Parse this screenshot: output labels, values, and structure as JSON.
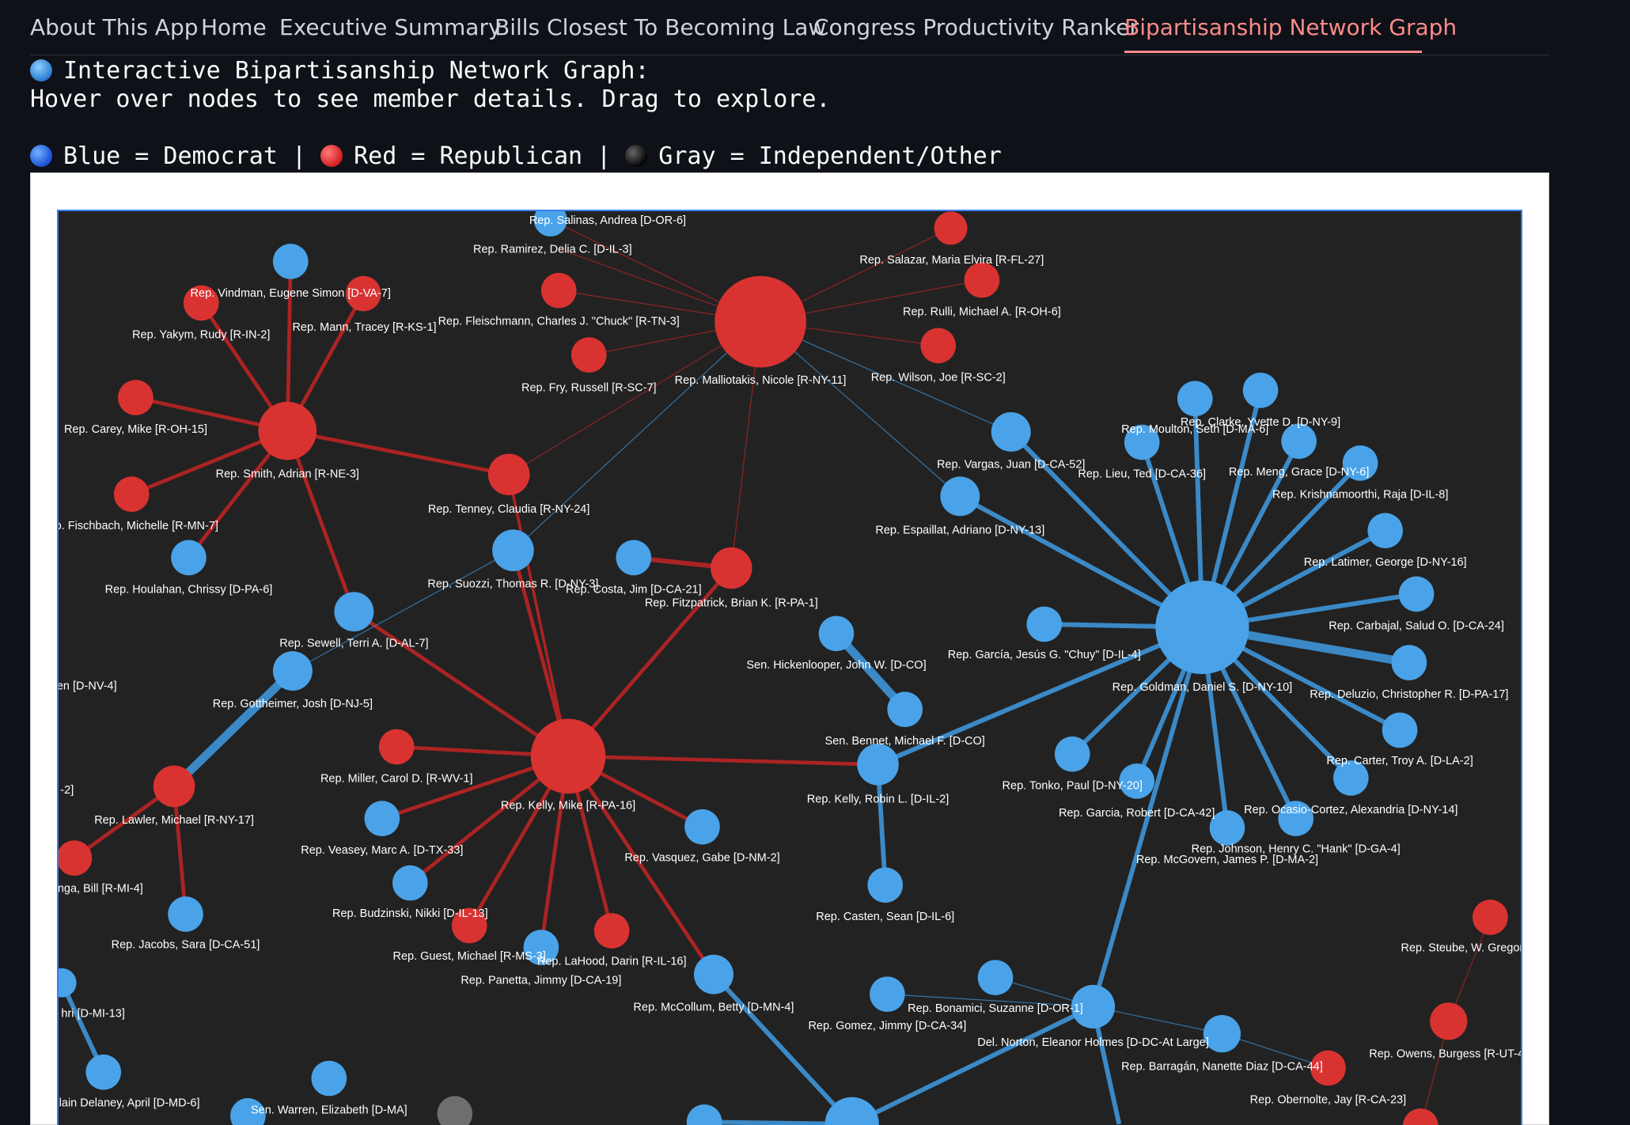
{
  "tabs": [
    {
      "label": "About This App",
      "active": false
    },
    {
      "label": "Home",
      "active": false
    },
    {
      "label": "Executive Summary",
      "active": false
    },
    {
      "label": "Bills Closest To Becoming Law",
      "active": false
    },
    {
      "label": "Congress Productivity Ranker",
      "active": false
    },
    {
      "label": "Bipartisanship Network Graph",
      "active": true
    }
  ],
  "intro": {
    "title": "Interactive Bipartisanship Network Graph:",
    "instructions": "Hover over nodes to see member details. Drag to explore.",
    "legend": {
      "democrat": "Blue = Democrat",
      "republican": "Red = Republican",
      "independent": "Gray = Independent/Other",
      "separator": "|"
    }
  },
  "colors": {
    "democrat": "#4aa3e8",
    "republican": "#d93331",
    "independent": "#6e6e6e",
    "accent": "#ff8a8a",
    "frame_border": "#3b7dea"
  },
  "nodes": [
    {
      "id": "salinas",
      "label": "Rep. Salinas, Andrea [D-OR-6]",
      "party": "D"
    },
    {
      "id": "ramirez",
      "label": "Rep. Ramirez, Delia C. [D-IL-3]",
      "party": "D"
    },
    {
      "id": "salazar",
      "label": "Rep. Salazar, Maria Elvira [R-FL-27]",
      "party": "R"
    },
    {
      "id": "vindman",
      "label": "Rep. Vindman, Eugene Simon [D-VA-7]",
      "party": "D"
    },
    {
      "id": "yakym",
      "label": "Rep. Yakym, Rudy [R-IN-2]",
      "party": "R"
    },
    {
      "id": "mann",
      "label": "Rep. Mann, Tracey [R-KS-1]",
      "party": "R"
    },
    {
      "id": "fleischmann",
      "label": "Rep. Fleischmann, Charles J. \"Chuck\" [R-TN-3]",
      "party": "R"
    },
    {
      "id": "rulli",
      "label": "Rep. Rulli, Michael A. [R-OH-6]",
      "party": "R"
    },
    {
      "id": "malliotakis",
      "label": "Rep. Malliotakis, Nicole [R-NY-11]",
      "party": "R"
    },
    {
      "id": "fry",
      "label": "Rep. Fry, Russell [R-SC-7]",
      "party": "R"
    },
    {
      "id": "wilson",
      "label": "Rep. Wilson, Joe [R-SC-2]",
      "party": "R"
    },
    {
      "id": "carey",
      "label": "Rep. Carey, Mike [R-OH-15]",
      "party": "R"
    },
    {
      "id": "smith",
      "label": "Rep. Smith, Adrian [R-NE-3]",
      "party": "R"
    },
    {
      "id": "fischbach",
      "label": "p. Fischbach, Michelle [R-MN-7]",
      "party": "R"
    },
    {
      "id": "houlahan",
      "label": "Rep. Houlahan, Chrissy [D-PA-6]",
      "party": "D"
    },
    {
      "id": "tenney",
      "label": "Rep. Tenney, Claudia [R-NY-24]",
      "party": "R"
    },
    {
      "id": "suozzi",
      "label": "Rep. Suozzi, Thomas R. [D-NY-3]",
      "party": "D"
    },
    {
      "id": "costa",
      "label": "Rep. Costa, Jim [D-CA-21]",
      "party": "D"
    },
    {
      "id": "fitzpatrick",
      "label": "Rep. Fitzpatrick, Brian K. [R-PA-1]",
      "party": "R"
    },
    {
      "id": "vargas",
      "label": "Rep. Vargas, Juan [D-CA-52]",
      "party": "D"
    },
    {
      "id": "espaillat",
      "label": "Rep. Espaillat, Adriano [D-NY-13]",
      "party": "D"
    },
    {
      "id": "moulton",
      "label": "Rep. Moulton, Seth [D-MA-6]",
      "party": "D"
    },
    {
      "id": "clarke",
      "label": "Rep. Clarke, Yvette D. [D-NY-9]",
      "party": "D"
    },
    {
      "id": "lieu",
      "label": "Rep. Lieu, Ted [D-CA-36]",
      "party": "D"
    },
    {
      "id": "meng",
      "label": "Rep. Meng, Grace [D-NY-6]",
      "party": "D"
    },
    {
      "id": "krishnamoorthi",
      "label": "Rep. Krishnamoorthi, Raja [D-IL-8]",
      "party": "D"
    },
    {
      "id": "latimer",
      "label": "Rep. Latimer, George [D-NY-16]",
      "party": "D"
    },
    {
      "id": "carbajal",
      "label": "Rep. Carbajal, Salud O. [D-CA-24]",
      "party": "D"
    },
    {
      "id": "garcia_j",
      "label": "Rep. García, Jesús G. \"Chuy\" [D-IL-4]",
      "party": "D"
    },
    {
      "id": "goldman",
      "label": "Rep. Goldman, Daniel S. [D-NY-10]",
      "party": "D"
    },
    {
      "id": "deluzio",
      "label": "Rep. Deluzio, Christopher R. [D-PA-17]",
      "party": "D"
    },
    {
      "id": "sewell",
      "label": "Rep. Sewell, Terri A. [D-AL-7]",
      "party": "D"
    },
    {
      "id": "hickenlooper",
      "label": "Sen. Hickenlooper, John W. [D-CO]",
      "party": "D"
    },
    {
      "id": "nv4",
      "label": "en [D-NV-4]",
      "party": "D"
    },
    {
      "id": "gottheimer",
      "label": "Rep. Gottheimer, Josh [D-NJ-5]",
      "party": "D"
    },
    {
      "id": "bennet",
      "label": "Sen. Bennet, Michael F. [D-CO]",
      "party": "D"
    },
    {
      "id": "carter",
      "label": "Rep. Carter, Troy A. [D-LA-2]",
      "party": "D"
    },
    {
      "id": "miller",
      "label": "Rep. Miller, Carol D. [R-WV-1]",
      "party": "R"
    },
    {
      "id": "tonko",
      "label": "Rep. Tonko, Paul [D-NY-20]",
      "party": "D"
    },
    {
      "id": "nn2",
      "label": "-2]",
      "party": "D"
    },
    {
      "id": "kelly_mike",
      "label": "Rep. Kelly, Mike [R-PA-16]",
      "party": "R"
    },
    {
      "id": "kelly_robin",
      "label": "Rep. Kelly, Robin L. [D-IL-2]",
      "party": "D"
    },
    {
      "id": "garcia_r",
      "label": "Rep. Garcia, Robert [D-CA-42]",
      "party": "D"
    },
    {
      "id": "ocasio",
      "label": "Rep. Ocasio-Cortez, Alexandria [D-NY-14]",
      "party": "D"
    },
    {
      "id": "lawler",
      "label": "Rep. Lawler, Michael [R-NY-17]",
      "party": "R"
    },
    {
      "id": "veasey",
      "label": "Rep. Veasey, Marc A. [D-TX-33]",
      "party": "D"
    },
    {
      "id": "vasquez",
      "label": "Rep. Vasquez, Gabe [D-NM-2]",
      "party": "D"
    },
    {
      "id": "johnson",
      "label": "Rep. Johnson, Henry C. \"Hank\" [D-GA-4]",
      "party": "D"
    },
    {
      "id": "mcgovern",
      "label": "Rep. McGovern, James P. [D-MA-2]",
      "party": "D"
    },
    {
      "id": "huizenga",
      "label": "nga, Bill [R-MI-4]",
      "party": "R"
    },
    {
      "id": "budzinski",
      "label": "Rep. Budzinski, Nikki [D-IL-13]",
      "party": "D"
    },
    {
      "id": "casten",
      "label": "Rep. Casten, Sean [D-IL-6]",
      "party": "D"
    },
    {
      "id": "steube",
      "label": "Rep. Steube, W. Gregor",
      "party": "R"
    },
    {
      "id": "jacobs",
      "label": "Rep. Jacobs, Sara [D-CA-51]",
      "party": "D"
    },
    {
      "id": "guest",
      "label": "Rep. Guest, Michael [R-MS-3]",
      "party": "R"
    },
    {
      "id": "lahood",
      "label": "Rep. LaHood, Darin [R-IL-16]",
      "party": "R"
    },
    {
      "id": "panetta",
      "label": "Rep. Panetta, Jimmy [D-CA-19]",
      "party": "D"
    },
    {
      "id": "mccollum",
      "label": "Rep. McCollum, Betty [D-MN-4]",
      "party": "D"
    },
    {
      "id": "bonamici",
      "label": "Rep. Bonamici, Suzanne [D-OR-1]",
      "party": "D"
    },
    {
      "id": "gomez",
      "label": "Rep. Gomez, Jimmy [D-CA-34]",
      "party": "D"
    },
    {
      "id": "norton",
      "label": "Del. Norton, Eleanor Holmes [D-DC-At Large]",
      "party": "D"
    },
    {
      "id": "thanedar",
      "label": "hri [D-MI-13]",
      "party": "D"
    },
    {
      "id": "owens",
      "label": "Rep. Owens, Burgess [R-UT-4",
      "party": "R"
    },
    {
      "id": "barragan",
      "label": "Rep. Barragán, Nanette Diaz [D-CA-44]",
      "party": "D"
    },
    {
      "id": "obernolte",
      "label": "Rep. Obernolte, Jay [R-CA-23]",
      "party": "R"
    },
    {
      "id": "mcclain",
      "label": "lain Delaney, April [D-MD-6]",
      "party": "D"
    },
    {
      "id": "warren",
      "label": "Sen. Warren, Elizabeth [D-MA]",
      "party": "D"
    },
    {
      "id": "ind",
      "label": "",
      "party": "I"
    },
    {
      "id": "b1",
      "label": "",
      "party": "D"
    },
    {
      "id": "b2",
      "label": "",
      "party": "D"
    },
    {
      "id": "b3",
      "label": "",
      "party": "D"
    },
    {
      "id": "b4",
      "label": "",
      "party": "D"
    },
    {
      "id": "r1",
      "label": "",
      "party": "R"
    },
    {
      "id": "r2",
      "label": "",
      "party": "R"
    },
    {
      "id": "b5",
      "label": "",
      "party": "D"
    }
  ]
}
